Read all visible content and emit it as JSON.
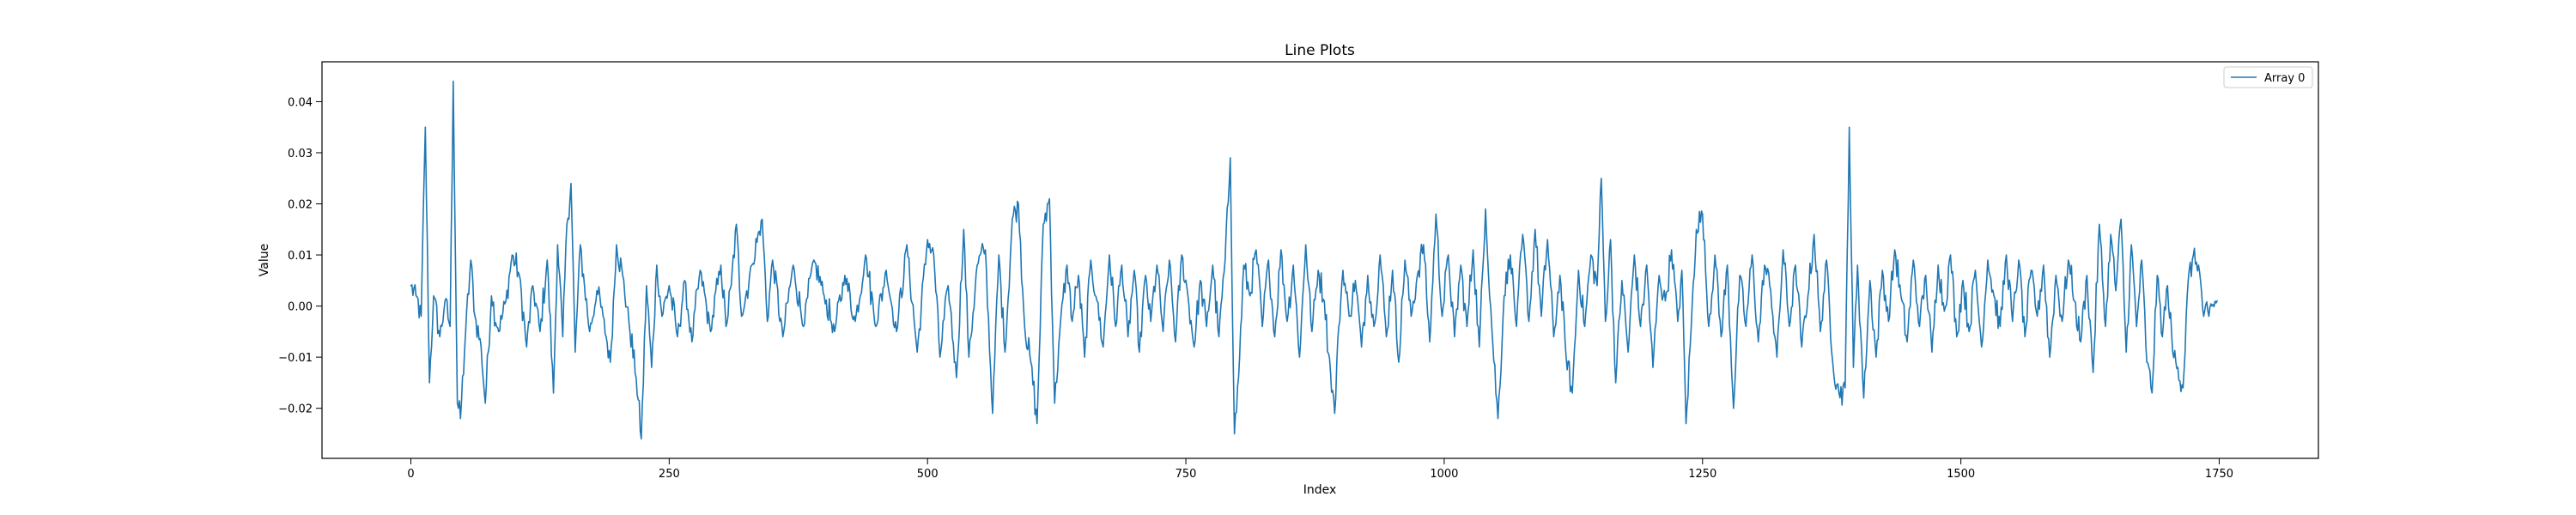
{
  "chart_data": {
    "type": "line",
    "title": "Line Plots",
    "xlabel": "Index",
    "ylabel": "Value",
    "xlim": [
      -86,
      1846
    ],
    "ylim": [
      -0.0298,
      0.0478
    ],
    "x_ticks": [
      0,
      250,
      500,
      750,
      1000,
      1250,
      1500,
      1750
    ],
    "y_ticks": [
      -0.02,
      -0.01,
      0.0,
      0.01,
      0.02,
      0.03,
      0.04
    ],
    "y_tick_labels": [
      "−0.02",
      "−0.01",
      "0.00",
      "0.01",
      "0.02",
      "0.03",
      "0.04"
    ],
    "grid": false,
    "legend_position": "upper right",
    "series": [
      {
        "name": "Array 0",
        "color": "#1f77b4",
        "x_start": 0,
        "x_step": 1,
        "count": 1749,
        "key_points": [
          [
            0,
            0.004
          ],
          [
            5,
            0.002
          ],
          [
            10,
            -0.002
          ],
          [
            14,
            0.035
          ],
          [
            18,
            -0.015
          ],
          [
            22,
            0.002
          ],
          [
            28,
            -0.006
          ],
          [
            33,
            0.001
          ],
          [
            38,
            -0.004
          ],
          [
            41,
            0.044
          ],
          [
            45,
            -0.019
          ],
          [
            48,
            -0.022
          ],
          [
            53,
            -0.005
          ],
          [
            58,
            0.009
          ],
          [
            62,
            -0.002
          ],
          [
            68,
            -0.008
          ],
          [
            72,
            -0.019
          ],
          [
            78,
            0.002
          ],
          [
            85,
            -0.005
          ],
          [
            92,
            0.001
          ],
          [
            98,
            0.01
          ],
          [
            105,
            0.006
          ],
          [
            112,
            -0.008
          ],
          [
            118,
            0.004
          ],
          [
            125,
            -0.005
          ],
          [
            132,
            0.009
          ],
          [
            138,
            -0.017
          ],
          [
            142,
            0.012
          ],
          [
            147,
            -0.006
          ],
          [
            151,
            0.016
          ],
          [
            155,
            0.024
          ],
          [
            159,
            -0.009
          ],
          [
            164,
            0.012
          ],
          [
            168,
            0.004
          ],
          [
            173,
            -0.005
          ],
          [
            180,
            0.003
          ],
          [
            186,
            -0.002
          ],
          [
            193,
            -0.011
          ],
          [
            199,
            0.012
          ],
          [
            205,
            0.006
          ],
          [
            211,
            -0.003
          ],
          [
            218,
            -0.014
          ],
          [
            223,
            -0.026
          ],
          [
            228,
            0.004
          ],
          [
            233,
            -0.012
          ],
          [
            238,
            0.008
          ],
          [
            243,
            -0.002
          ],
          [
            250,
            0.004
          ],
          [
            258,
            -0.006
          ],
          [
            265,
            0.005
          ],
          [
            272,
            -0.007
          ],
          [
            280,
            0.007
          ],
          [
            290,
            -0.005
          ],
          [
            300,
            0.008
          ],
          [
            305,
            -0.004
          ],
          [
            310,
            0.004
          ],
          [
            315,
            0.016
          ],
          [
            320,
            -0.002
          ],
          [
            330,
            0.008
          ],
          [
            340,
            0.017
          ],
          [
            345,
            -0.003
          ],
          [
            350,
            0.009
          ],
          [
            360,
            -0.006
          ],
          [
            370,
            0.008
          ],
          [
            380,
            -0.004
          ],
          [
            390,
            0.009
          ],
          [
            400,
            0.002
          ],
          [
            410,
            -0.005
          ],
          [
            420,
            0.006
          ],
          [
            430,
            -0.003
          ],
          [
            440,
            0.01
          ],
          [
            450,
            -0.004
          ],
          [
            460,
            0.007
          ],
          [
            470,
            -0.005
          ],
          [
            480,
            0.012
          ],
          [
            490,
            -0.009
          ],
          [
            500,
            0.013
          ],
          [
            506,
            0.01
          ],
          [
            512,
            -0.01
          ],
          [
            520,
            0.004
          ],
          [
            528,
            -0.014
          ],
          [
            535,
            0.015
          ],
          [
            540,
            -0.01
          ],
          [
            548,
            0.008
          ],
          [
            556,
            0.011
          ],
          [
            563,
            -0.021
          ],
          [
            569,
            0.01
          ],
          [
            575,
            -0.009
          ],
          [
            582,
            0.017
          ],
          [
            588,
            0.02
          ],
          [
            594,
            -0.004
          ],
          [
            600,
            -0.011
          ],
          [
            606,
            -0.023
          ],
          [
            612,
            0.016
          ],
          [
            618,
            0.021
          ],
          [
            623,
            -0.019
          ],
          [
            628,
            -0.005
          ],
          [
            635,
            0.008
          ],
          [
            640,
            -0.003
          ],
          [
            646,
            0.006
          ],
          [
            652,
            -0.01
          ],
          [
            658,
            0.009
          ],
          [
            664,
            0.001
          ],
          [
            670,
            -0.008
          ],
          [
            676,
            0.01
          ],
          [
            682,
            -0.004
          ],
          [
            688,
            0.008
          ],
          [
            694,
            -0.006
          ],
          [
            700,
            0.007
          ],
          [
            705,
            -0.009
          ],
          [
            711,
            0.006
          ],
          [
            716,
            -0.003
          ],
          [
            722,
            0.008
          ],
          [
            728,
            -0.005
          ],
          [
            734,
            0.009
          ],
          [
            740,
            -0.007
          ],
          [
            746,
            0.01
          ],
          [
            752,
            0.002
          ],
          [
            758,
            -0.008
          ],
          [
            764,
            0.005
          ],
          [
            770,
            -0.004
          ],
          [
            776,
            0.008
          ],
          [
            782,
            -0.006
          ],
          [
            788,
            0.009
          ],
          [
            793,
            0.029
          ],
          [
            797,
            -0.025
          ],
          [
            801,
            -0.014
          ],
          [
            806,
            0.008
          ],
          [
            812,
            0.002
          ],
          [
            818,
            0.011
          ],
          [
            824,
            -0.004
          ],
          [
            830,
            0.009
          ],
          [
            836,
            -0.006
          ],
          [
            842,
            0.011
          ],
          [
            848,
            -0.003
          ],
          [
            854,
            0.008
          ],
          [
            860,
            -0.01
          ],
          [
            866,
            0.012
          ],
          [
            872,
            -0.005
          ],
          [
            878,
            0.007
          ],
          [
            884,
            0.001
          ],
          [
            890,
            -0.013
          ],
          [
            894,
            -0.021
          ],
          [
            898,
            -0.004
          ],
          [
            902,
            0.007
          ],
          [
            908,
            -0.002
          ],
          [
            914,
            0.005
          ],
          [
            920,
            -0.008
          ],
          [
            926,
            0.006
          ],
          [
            932,
            -0.004
          ],
          [
            938,
            0.01
          ],
          [
            944,
            -0.006
          ],
          [
            950,
            0.007
          ],
          [
            956,
            -0.011
          ],
          [
            962,
            0.009
          ],
          [
            968,
            -0.002
          ],
          [
            974,
            0.006
          ],
          [
            980,
            0.012
          ],
          [
            986,
            -0.007
          ],
          [
            992,
            0.018
          ],
          [
            998,
            -0.002
          ],
          [
            1004,
            0.01
          ],
          [
            1010,
            -0.006
          ],
          [
            1016,
            0.008
          ],
          [
            1022,
            -0.004
          ],
          [
            1028,
            0.011
          ],
          [
            1034,
            -0.008
          ],
          [
            1040,
            0.019
          ],
          [
            1046,
            -0.004
          ],
          [
            1052,
            -0.022
          ],
          [
            1058,
            0.002
          ],
          [
            1064,
            0.01
          ],
          [
            1070,
            -0.004
          ],
          [
            1076,
            0.014
          ],
          [
            1082,
            -0.003
          ],
          [
            1088,
            0.015
          ],
          [
            1094,
            -0.002
          ],
          [
            1100,
            0.013
          ],
          [
            1106,
            -0.006
          ],
          [
            1112,
            0.006
          ],
          [
            1118,
            -0.01
          ],
          [
            1124,
            -0.017
          ],
          [
            1130,
            0.007
          ],
          [
            1136,
            -0.004
          ],
          [
            1142,
            0.01
          ],
          [
            1148,
            0.004
          ],
          [
            1152,
            0.025
          ],
          [
            1156,
            -0.003
          ],
          [
            1161,
            0.013
          ],
          [
            1166,
            -0.015
          ],
          [
            1172,
            0.005
          ],
          [
            1178,
            -0.009
          ],
          [
            1184,
            0.01
          ],
          [
            1190,
            -0.004
          ],
          [
            1196,
            0.008
          ],
          [
            1202,
            -0.012
          ],
          [
            1208,
            0.006
          ],
          [
            1214,
            0.001
          ],
          [
            1220,
            0.011
          ],
          [
            1226,
            -0.003
          ],
          [
            1230,
            0.007
          ],
          [
            1234,
            -0.023
          ],
          [
            1238,
            -0.008
          ],
          [
            1244,
            0.015
          ],
          [
            1250,
            0.018
          ],
          [
            1256,
            -0.004
          ],
          [
            1262,
            0.01
          ],
          [
            1268,
            -0.006
          ],
          [
            1274,
            0.008
          ],
          [
            1280,
            -0.02
          ],
          [
            1286,
            0.006
          ],
          [
            1292,
            -0.004
          ],
          [
            1298,
            0.01
          ],
          [
            1304,
            -0.007
          ],
          [
            1310,
            0.008
          ],
          [
            1316,
            0.003
          ],
          [
            1322,
            -0.01
          ],
          [
            1328,
            0.011
          ],
          [
            1334,
            -0.004
          ],
          [
            1340,
            0.008
          ],
          [
            1346,
            -0.008
          ],
          [
            1352,
            0.002
          ],
          [
            1358,
            0.014
          ],
          [
            1364,
            -0.005
          ],
          [
            1370,
            0.009
          ],
          [
            1376,
            -0.011
          ],
          [
            1382,
            -0.017
          ],
          [
            1388,
            -0.016
          ],
          [
            1392,
            0.035
          ],
          [
            1396,
            -0.012
          ],
          [
            1400,
            0.008
          ],
          [
            1406,
            -0.018
          ],
          [
            1412,
            0.005
          ],
          [
            1418,
            -0.01
          ],
          [
            1424,
            0.007
          ],
          [
            1430,
            -0.003
          ],
          [
            1436,
            0.011
          ],
          [
            1442,
            0.002
          ],
          [
            1448,
            -0.007
          ],
          [
            1454,
            0.009
          ],
          [
            1460,
            -0.004
          ],
          [
            1466,
            0.006
          ],
          [
            1472,
            -0.009
          ],
          [
            1478,
            0.008
          ],
          [
            1484,
            -0.001
          ],
          [
            1490,
            0.01
          ],
          [
            1496,
            -0.006
          ],
          [
            1502,
            0.005
          ],
          [
            1508,
            -0.005
          ],
          [
            1514,
            0.007
          ],
          [
            1520,
            -0.008
          ],
          [
            1526,
            0.009
          ],
          [
            1532,
            0.002
          ],
          [
            1538,
            -0.004
          ],
          [
            1544,
            0.01
          ],
          [
            1550,
            -0.003
          ],
          [
            1556,
            0.009
          ],
          [
            1562,
            -0.006
          ],
          [
            1568,
            0.007
          ],
          [
            1574,
            -0.002
          ],
          [
            1580,
            0.008
          ],
          [
            1586,
            -0.01
          ],
          [
            1592,
            0.006
          ],
          [
            1598,
            -0.003
          ],
          [
            1604,
            0.009
          ],
          [
            1610,
            0.001
          ],
          [
            1616,
            -0.007
          ],
          [
            1622,
            0.006
          ],
          [
            1628,
            -0.013
          ],
          [
            1634,
            0.016
          ],
          [
            1640,
            -0.004
          ],
          [
            1645,
            0.014
          ],
          [
            1650,
            0.003
          ],
          [
            1655,
            0.017
          ],
          [
            1660,
            -0.009
          ],
          [
            1665,
            0.012
          ],
          [
            1670,
            -0.004
          ],
          [
            1675,
            0.009
          ],
          [
            1680,
            -0.011
          ],
          [
            1685,
            -0.017
          ],
          [
            1690,
            0.006
          ],
          [
            1695,
            -0.006
          ],
          [
            1700,
            0.004
          ],
          [
            1705,
            -0.009
          ],
          [
            1710,
            -0.012
          ],
          [
            1715,
            -0.016
          ],
          [
            1720,
            0.005
          ],
          [
            1725,
            0.01
          ],
          [
            1730,
            0.008
          ],
          [
            1735,
            -0.002
          ],
          [
            1740,
            -0.002
          ],
          [
            1743,
            0.0
          ],
          [
            1748,
            0.001
          ]
        ]
      }
    ]
  }
}
